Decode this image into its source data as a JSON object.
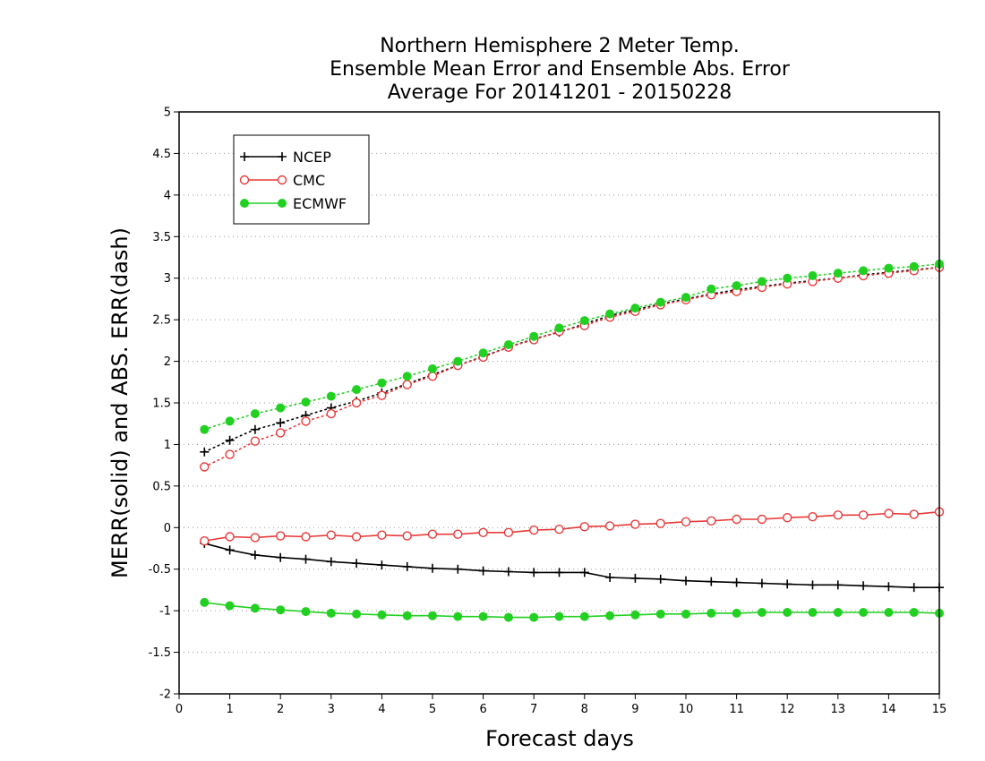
{
  "chart_data": {
    "type": "line",
    "title": [
      "Northern Hemisphere 2 Meter Temp.",
      "Ensemble Mean Error and Ensemble Abs. Error",
      "Average For 20141201 - 20150228"
    ],
    "xlabel": "Forecast days",
    "ylabel": "MERR(solid) and ABS. ERR(dash)",
    "xlim": [
      0,
      15
    ],
    "ylim": [
      -2,
      5
    ],
    "x_ticks": [
      "0",
      "1",
      "2",
      "3",
      "4",
      "5",
      "6",
      "7",
      "8",
      "9",
      "10",
      "11",
      "12",
      "13",
      "14",
      "15"
    ],
    "y_ticks": [
      "-2",
      "-1.5",
      "-1",
      "-0.5",
      "0",
      "0.5",
      "1",
      "1.5",
      "2",
      "2.5",
      "3",
      "3.5",
      "4",
      "4.5",
      "5"
    ],
    "grid": "horizontal-dotted",
    "legend_position": "top-left",
    "x": [
      0.5,
      1,
      1.5,
      2,
      2.5,
      3,
      3.5,
      4,
      4.5,
      5,
      5.5,
      6,
      6.5,
      7,
      7.5,
      8,
      8.5,
      9,
      9.5,
      10,
      10.5,
      11,
      11.5,
      12,
      12.5,
      13,
      13.5,
      14,
      14.5,
      15
    ],
    "series": [
      {
        "name": "NCEP",
        "color": "#000000",
        "marker": "plus",
        "merr": [
          -0.19,
          -0.27,
          -0.33,
          -0.36,
          -0.38,
          -0.41,
          -0.43,
          -0.45,
          -0.47,
          -0.49,
          -0.5,
          -0.52,
          -0.53,
          -0.54,
          -0.54,
          -0.54,
          -0.6,
          -0.61,
          -0.62,
          -0.64,
          -0.65,
          -0.66,
          -0.67,
          -0.68,
          -0.69,
          -0.69,
          -0.7,
          -0.71,
          -0.72,
          -0.72
        ],
        "abs_err": [
          0.91,
          1.05,
          1.18,
          1.26,
          1.35,
          1.44,
          1.52,
          1.62,
          1.73,
          1.84,
          1.95,
          2.06,
          2.17,
          2.27,
          2.35,
          2.45,
          2.55,
          2.62,
          2.69,
          2.75,
          2.81,
          2.86,
          2.9,
          2.94,
          2.97,
          3.0,
          3.04,
          3.07,
          3.1,
          3.13
        ]
      },
      {
        "name": "CMC",
        "color": "#e83a3a",
        "marker": "open-circle",
        "merr": [
          -0.16,
          -0.11,
          -0.12,
          -0.1,
          -0.11,
          -0.09,
          -0.11,
          -0.09,
          -0.1,
          -0.08,
          -0.08,
          -0.06,
          -0.06,
          -0.03,
          -0.02,
          0.01,
          0.02,
          0.04,
          0.05,
          0.07,
          0.08,
          0.1,
          0.1,
          0.12,
          0.13,
          0.15,
          0.15,
          0.17,
          0.16,
          0.19
        ],
        "abs_err": [
          0.73,
          0.88,
          1.04,
          1.14,
          1.28,
          1.37,
          1.5,
          1.59,
          1.72,
          1.82,
          1.95,
          2.05,
          2.17,
          2.26,
          2.36,
          2.43,
          2.53,
          2.6,
          2.68,
          2.74,
          2.8,
          2.84,
          2.89,
          2.93,
          2.96,
          3.0,
          3.03,
          3.06,
          3.09,
          3.13
        ]
      },
      {
        "name": "ECMWF",
        "color": "#22d022",
        "marker": "filled-circle",
        "merr": [
          -0.9,
          -0.94,
          -0.97,
          -0.99,
          -1.01,
          -1.03,
          -1.04,
          -1.05,
          -1.06,
          -1.06,
          -1.07,
          -1.07,
          -1.08,
          -1.08,
          -1.07,
          -1.07,
          -1.06,
          -1.05,
          -1.04,
          -1.04,
          -1.03,
          -1.03,
          -1.02,
          -1.02,
          -1.02,
          -1.02,
          -1.02,
          -1.02,
          -1.02,
          -1.03
        ],
        "abs_err": [
          1.18,
          1.28,
          1.37,
          1.44,
          1.51,
          1.58,
          1.66,
          1.74,
          1.82,
          1.91,
          2.0,
          2.1,
          2.2,
          2.3,
          2.4,
          2.49,
          2.57,
          2.64,
          2.71,
          2.77,
          2.87,
          2.91,
          2.96,
          3.0,
          3.03,
          3.06,
          3.09,
          3.12,
          3.14,
          3.17
        ]
      }
    ]
  }
}
